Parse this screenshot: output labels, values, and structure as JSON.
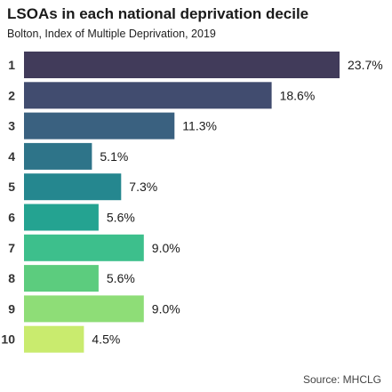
{
  "title": "LSOAs in each national deprivation decile",
  "subtitle": "Bolton, Index of Multiple Deprivation, 2019",
  "source": "Source: MHCLG",
  "chart_data": {
    "type": "bar",
    "orientation": "horizontal",
    "title": "LSOAs in each national deprivation decile",
    "subtitle": "Bolton, Index of Multiple Deprivation, 2019",
    "categories": [
      "1",
      "2",
      "3",
      "4",
      "5",
      "6",
      "7",
      "8",
      "9",
      "10"
    ],
    "values": [
      23.7,
      18.6,
      11.3,
      5.1,
      7.3,
      5.6,
      9.0,
      5.6,
      9.0,
      4.5
    ],
    "value_labels": [
      "23.7%",
      "18.6%",
      "11.3%",
      "5.1%",
      "7.3%",
      "5.6%",
      "9.0%",
      "5.6%",
      "9.0%",
      "4.5%"
    ],
    "colors": [
      "#413B5A",
      "#414C6F",
      "#3A6180",
      "#2E7489",
      "#25878F",
      "#24A391",
      "#3DBF8C",
      "#5CCC7E",
      "#8EDD77",
      "#C9EB6E"
    ],
    "xlim": [
      0,
      23.7
    ],
    "grid": false,
    "legend": "none"
  }
}
